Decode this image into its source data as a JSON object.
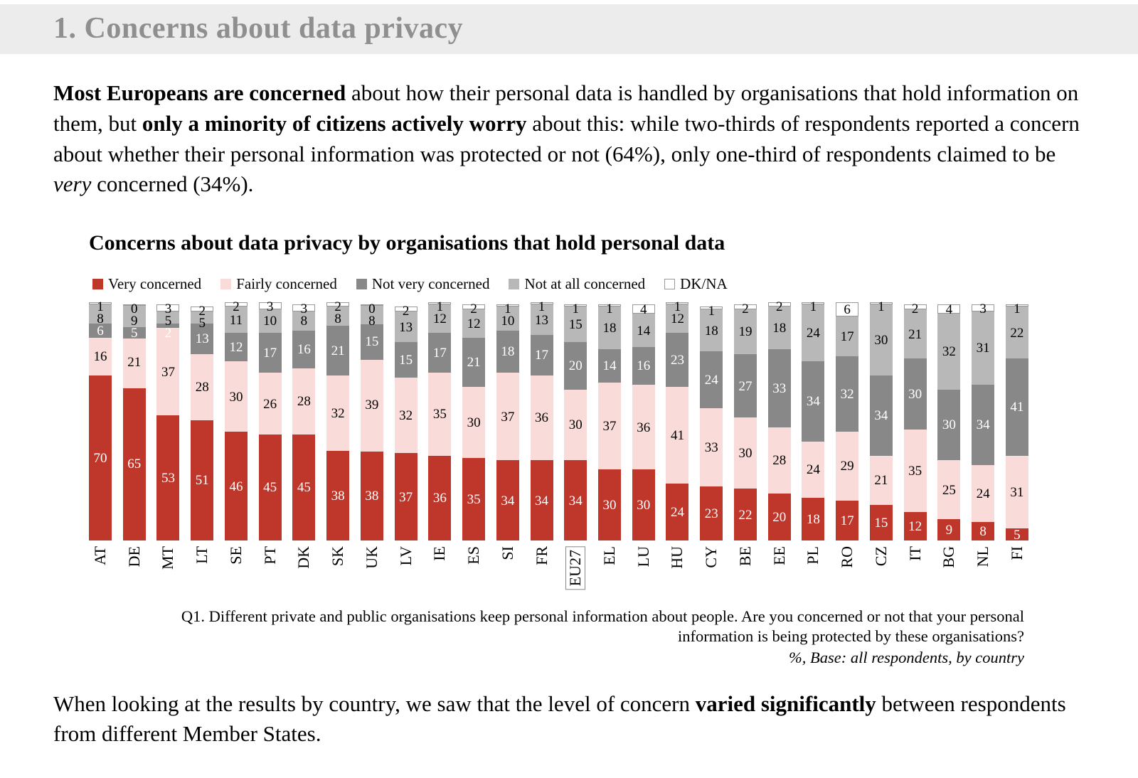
{
  "page": {
    "section_title": "1. Concerns about data privacy",
    "intro": {
      "bold1": "Most Europeans are concerned",
      "text1": " about how their personal data is handled by organisations that hold information on them, but ",
      "bold2": "only a minority of citizens actively worry",
      "text2": " about this: while two-thirds of respondents reported a concern about whether their personal information was protected or not (64%), only one-third of respondents claimed to be ",
      "italic1": "very",
      "text3": " concerned (34%)."
    },
    "closing": {
      "text1": "When looking at the results by country, we saw that the level of concern ",
      "bold1": "varied significantly",
      "text2": " between respondents from different Member States."
    }
  },
  "chart_data": {
    "type": "bar",
    "stacked": true,
    "units": "percent",
    "title": "Concerns about data privacy by organisations that  hold personal data",
    "legend_position": "top",
    "ylim": [
      0,
      100
    ],
    "grid": false,
    "categories": [
      "AT",
      "DE",
      "MT",
      "LT",
      "SE",
      "PT",
      "DK",
      "SK",
      "UK",
      "LV",
      "IE",
      "ES",
      "SI",
      "FR",
      "EU27",
      "EL",
      "LU",
      "HU",
      "CY",
      "BE",
      "EE",
      "PL",
      "RO",
      "CZ",
      "IT",
      "BG",
      "NL",
      "FI"
    ],
    "highlight_category": "EU27",
    "series": [
      {
        "name": "Very concerned",
        "color": "#bf372b",
        "label_color": "#ffffff",
        "values": [
          70,
          65,
          53,
          51,
          46,
          45,
          45,
          38,
          38,
          37,
          36,
          35,
          34,
          34,
          34,
          30,
          30,
          24,
          23,
          22,
          20,
          18,
          17,
          15,
          12,
          9,
          8,
          5
        ]
      },
      {
        "name": "Fairly concerned",
        "color": "#f9dcd9",
        "label_color": "#000000",
        "values": [
          16,
          21,
          37,
          28,
          30,
          26,
          28,
          32,
          39,
          32,
          35,
          30,
          37,
          36,
          30,
          37,
          36,
          41,
          33,
          30,
          28,
          24,
          29,
          21,
          35,
          25,
          24,
          31
        ]
      },
      {
        "name": "Not very concerned",
        "color": "#888888",
        "label_color": "#ffffff",
        "values": [
          6,
          5,
          2,
          13,
          12,
          17,
          16,
          21,
          15,
          15,
          17,
          21,
          18,
          17,
          20,
          14,
          16,
          23,
          24,
          27,
          33,
          34,
          32,
          34,
          30,
          30,
          34,
          41
        ]
      },
      {
        "name": "Not at all concerned",
        "color": "#b8b8b8",
        "label_color": "#000000",
        "values": [
          8,
          9,
          5,
          5,
          11,
          10,
          8,
          8,
          8,
          13,
          12,
          12,
          10,
          13,
          15,
          18,
          14,
          12,
          18,
          19,
          18,
          24,
          17,
          30,
          21,
          32,
          31,
          22
        ]
      },
      {
        "name": "DK/NA",
        "color": "#ffffff",
        "border": "#999999",
        "label_color": "#000000",
        "values": [
          1,
          0,
          3,
          2,
          2,
          3,
          3,
          2,
          0,
          2,
          1,
          2,
          1,
          1,
          1,
          1,
          4,
          1,
          1,
          2,
          2,
          1,
          6,
          1,
          2,
          4,
          3,
          1
        ]
      }
    ],
    "footnote": {
      "question": "Q1.  Different private and public organisations keep personal information about people. Are you concerned or not that your personal information is being protected by these organisations?",
      "base": "%, Base: all respondents,  by country"
    }
  }
}
